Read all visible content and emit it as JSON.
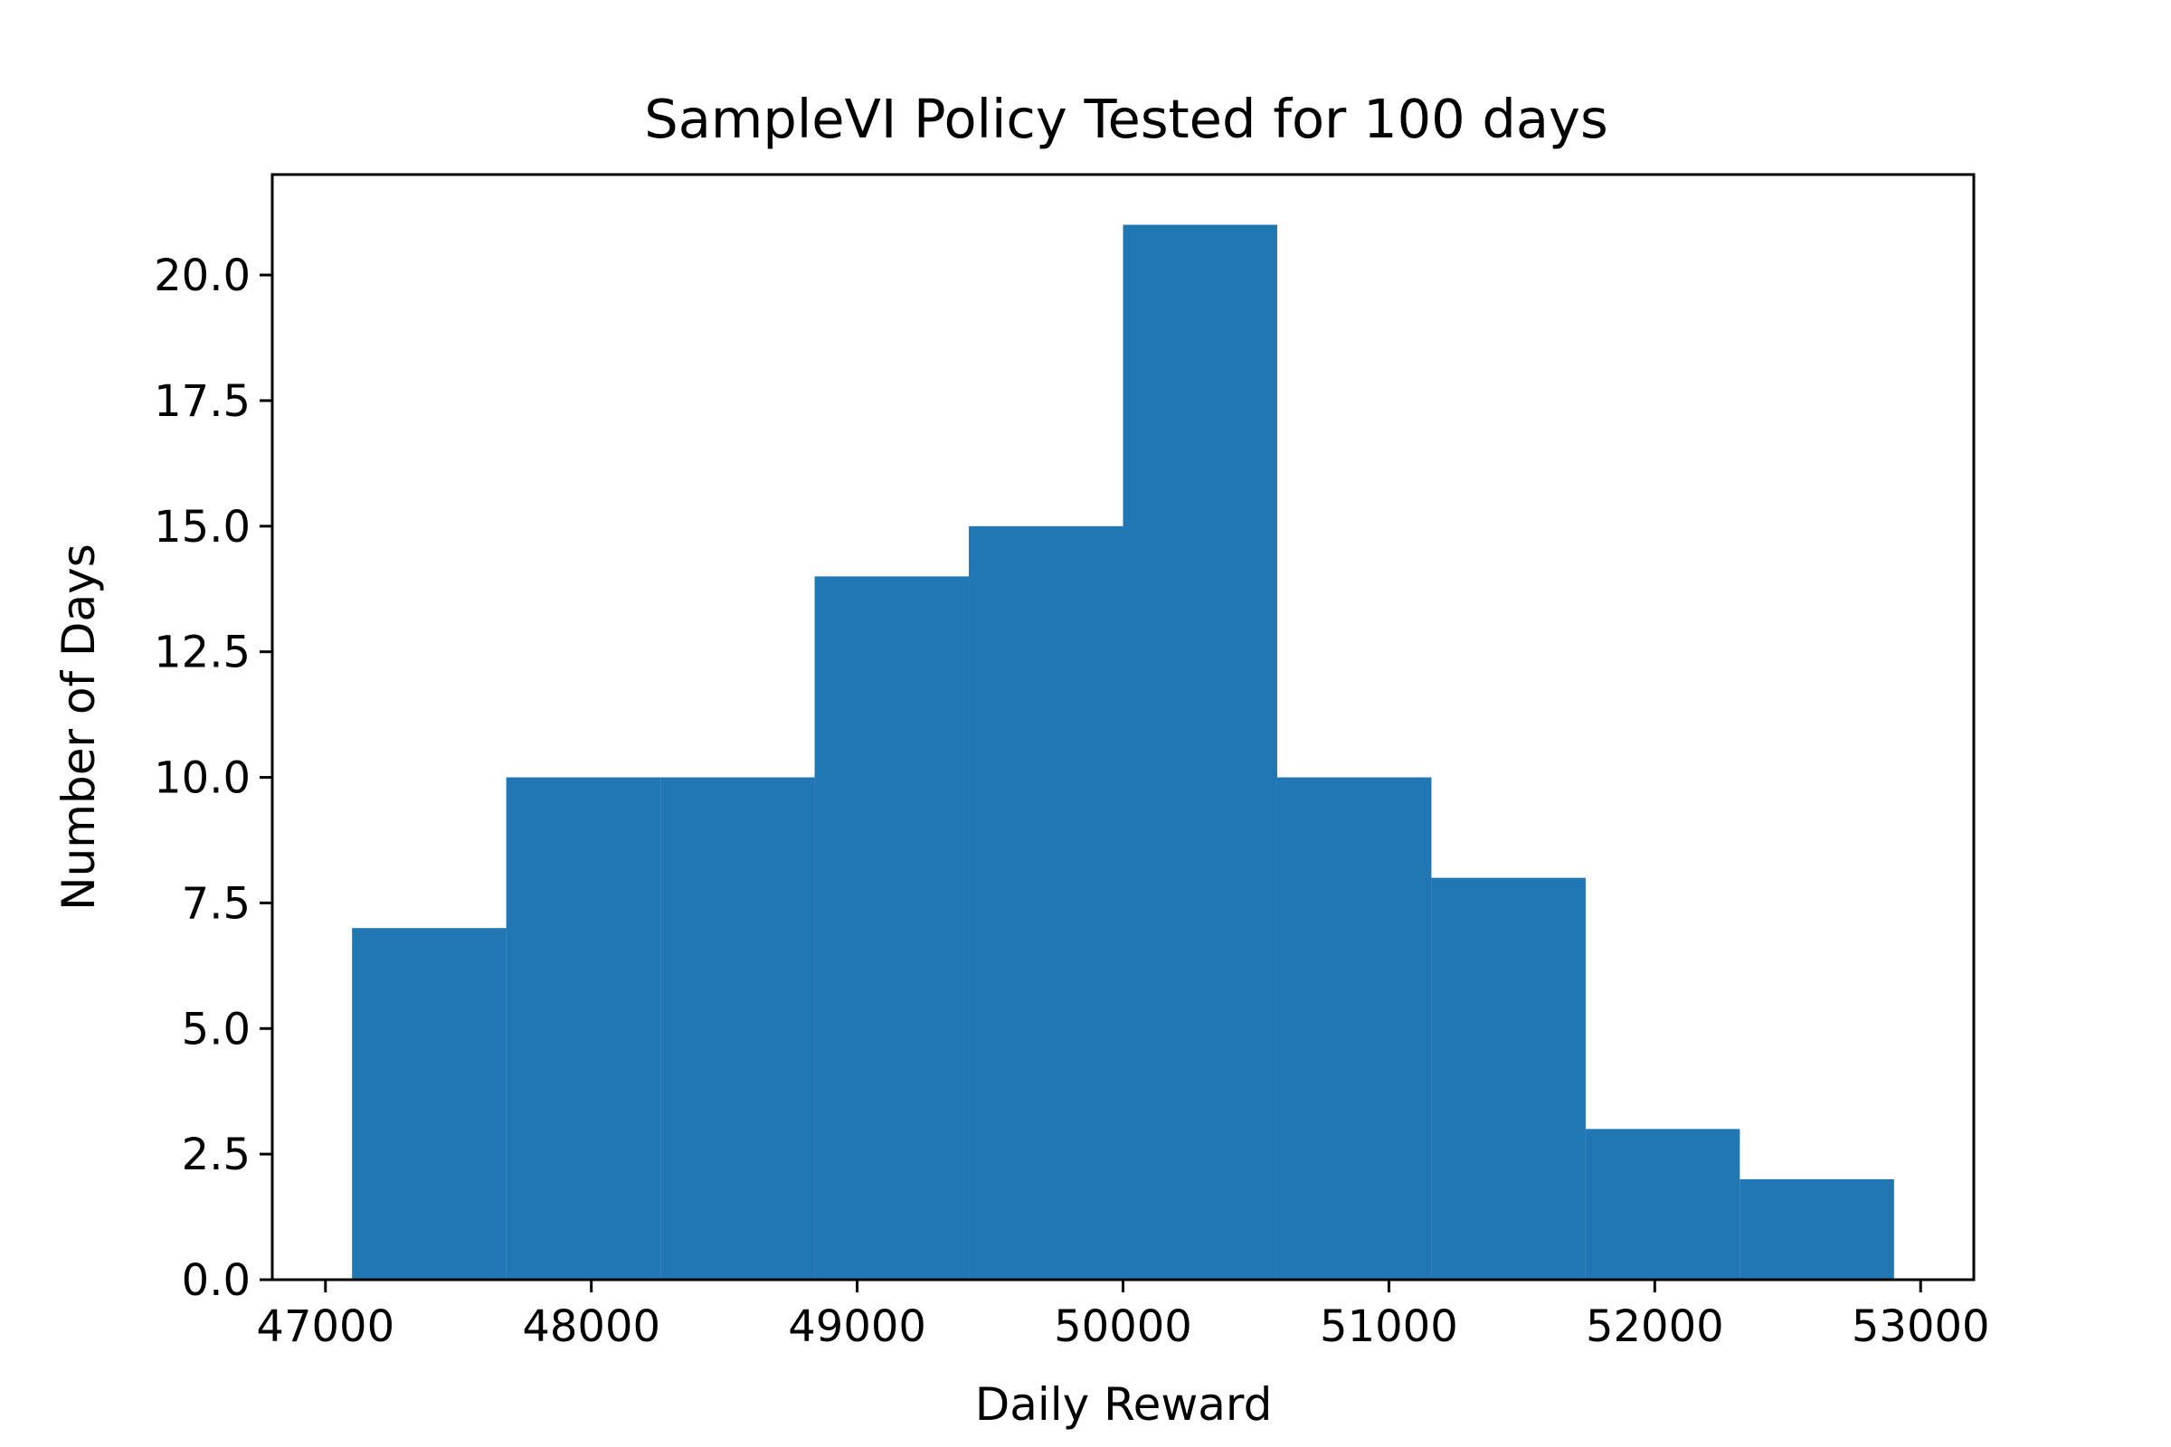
{
  "chart_data": {
    "type": "bar",
    "title": "SampleVI Policy Tested for 100 days",
    "xlabel": "Daily Reward",
    "ylabel": "Number of Days",
    "xlim": [
      46800,
      53200
    ],
    "ylim": [
      0,
      22
    ],
    "bin_edges": [
      47100,
      47680,
      48260,
      48840,
      49420,
      50000,
      50580,
      51160,
      51740,
      52320,
      52900
    ],
    "values": [
      7,
      10,
      10,
      14,
      15,
      21,
      10,
      8,
      3,
      2
    ],
    "x_ticks": [
      47000,
      48000,
      49000,
      50000,
      51000,
      52000,
      53000
    ],
    "x_tick_labels": [
      "47000",
      "48000",
      "49000",
      "50000",
      "51000",
      "52000",
      "53000"
    ],
    "y_ticks": [
      0,
      2.5,
      5,
      7.5,
      10,
      12.5,
      15,
      17.5,
      20
    ],
    "y_tick_labels": [
      "0.0",
      "2.5",
      "5.0",
      "7.5",
      "10.0",
      "12.5",
      "15.0",
      "17.5",
      "20.0"
    ],
    "bar_color": "#2077b4",
    "grid": false,
    "legend": "none"
  }
}
